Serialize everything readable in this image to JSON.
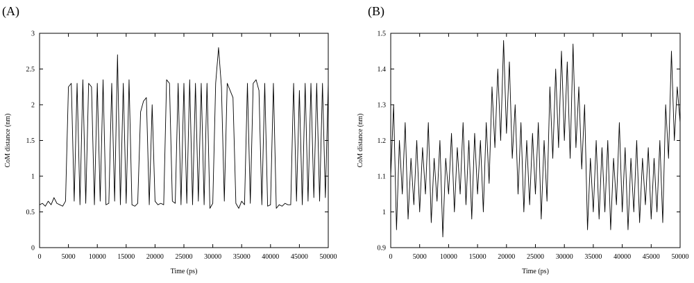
{
  "chart_data": [
    {
      "type": "line",
      "panel_label": "(A)",
      "xlabel": "Time (ps)",
      "ylabel": "CoM distance (nm)",
      "xlim": [
        0,
        50000
      ],
      "ylim": [
        0,
        3
      ],
      "xticks": [
        0,
        5000,
        10000,
        15000,
        20000,
        25000,
        30000,
        35000,
        40000,
        45000,
        50000
      ],
      "yticks": [
        0,
        0.5,
        1,
        1.5,
        2,
        2.5,
        3
      ],
      "x": [
        0,
        500,
        1000,
        1500,
        2000,
        2500,
        3000,
        3500,
        4000,
        4500,
        5000,
        5500,
        6000,
        6500,
        7000,
        7500,
        8000,
        8500,
        9000,
        9500,
        10000,
        10500,
        11000,
        11500,
        12000,
        12500,
        13000,
        13500,
        14000,
        14500,
        15000,
        15500,
        16000,
        16500,
        17000,
        17500,
        18000,
        18500,
        19000,
        19500,
        20000,
        20500,
        21000,
        21500,
        22000,
        22500,
        23000,
        23500,
        24000,
        24500,
        25000,
        25500,
        26000,
        26500,
        27000,
        27500,
        28000,
        28500,
        29000,
        29500,
        30000,
        30500,
        31000,
        31500,
        32000,
        32500,
        33000,
        33500,
        34000,
        34500,
        35000,
        35500,
        36000,
        36500,
        37000,
        37500,
        38000,
        38500,
        39000,
        39500,
        40000,
        40500,
        41000,
        41500,
        42000,
        42500,
        43000,
        43500,
        44000,
        44500,
        45000,
        45500,
        46000,
        46500,
        47000,
        47500,
        48000,
        48500,
        49000,
        49500,
        50000
      ],
      "series": [
        {
          "color": "#000000",
          "values": [
            0.6,
            0.62,
            0.58,
            0.65,
            0.6,
            0.7,
            0.62,
            0.6,
            0.58,
            0.65,
            2.25,
            2.3,
            0.65,
            2.3,
            0.6,
            2.35,
            0.62,
            2.3,
            2.25,
            0.6,
            2.3,
            0.65,
            2.35,
            0.6,
            0.62,
            2.3,
            0.65,
            2.7,
            0.6,
            2.3,
            0.62,
            2.35,
            0.6,
            0.58,
            0.62,
            1.9,
            2.05,
            2.1,
            0.6,
            2.0,
            0.65,
            0.6,
            0.62,
            0.6,
            2.35,
            2.3,
            0.65,
            0.62,
            2.3,
            0.6,
            2.3,
            0.62,
            2.35,
            0.6,
            2.3,
            0.65,
            2.3,
            0.6,
            2.3,
            0.55,
            0.62,
            2.3,
            2.8,
            2.25,
            0.65,
            2.3,
            2.2,
            2.1,
            0.62,
            0.55,
            0.65,
            0.6,
            2.3,
            0.62,
            2.3,
            2.35,
            2.2,
            0.6,
            2.3,
            0.58,
            0.6,
            2.3,
            0.55,
            0.6,
            0.58,
            0.62,
            0.6,
            0.6,
            2.3,
            0.65,
            2.2,
            0.6,
            2.3,
            0.65,
            2.3,
            0.7,
            2.3,
            0.65,
            2.3,
            0.7,
            2.3
          ]
        }
      ]
    },
    {
      "type": "line",
      "panel_label": "(B)",
      "xlabel": "Time (ps)",
      "ylabel": "CoM distance (nm)",
      "xlim": [
        0,
        50000
      ],
      "ylim": [
        0.9,
        1.5
      ],
      "xticks": [
        0,
        5000,
        10000,
        15000,
        20000,
        25000,
        30000,
        35000,
        40000,
        45000,
        50000
      ],
      "yticks": [
        0.9,
        1,
        1.1,
        1.2,
        1.3,
        1.4,
        1.5
      ],
      "x": [
        0,
        500,
        1000,
        1500,
        2000,
        2500,
        3000,
        3500,
        4000,
        4500,
        5000,
        5500,
        6000,
        6500,
        7000,
        7500,
        8000,
        8500,
        9000,
        9500,
        10000,
        10500,
        11000,
        11500,
        12000,
        12500,
        13000,
        13500,
        14000,
        14500,
        15000,
        15500,
        16000,
        16500,
        17000,
        17500,
        18000,
        18500,
        19000,
        19500,
        20000,
        20500,
        21000,
        21500,
        22000,
        22500,
        23000,
        23500,
        24000,
        24500,
        25000,
        25500,
        26000,
        26500,
        27000,
        27500,
        28000,
        28500,
        29000,
        29500,
        30000,
        30500,
        31000,
        31500,
        32000,
        32500,
        33000,
        33500,
        34000,
        34500,
        35000,
        35500,
        36000,
        36500,
        37000,
        37500,
        38000,
        38500,
        39000,
        39500,
        40000,
        40500,
        41000,
        41500,
        42000,
        42500,
        43000,
        43500,
        44000,
        44500,
        45000,
        45500,
        46000,
        46500,
        47000,
        47500,
        48000,
        48500,
        49000,
        49500,
        50000
      ],
      "series": [
        {
          "color": "#000000",
          "values": [
            1.1,
            1.3,
            0.95,
            1.2,
            1.05,
            1.25,
            0.98,
            1.15,
            1.02,
            1.2,
            1.0,
            1.18,
            1.05,
            1.25,
            0.97,
            1.15,
            1.03,
            1.2,
            0.93,
            1.15,
            1.05,
            1.22,
            1.0,
            1.18,
            1.05,
            1.25,
            1.02,
            1.2,
            0.98,
            1.22,
            1.05,
            1.2,
            1.0,
            1.25,
            1.08,
            1.35,
            1.18,
            1.4,
            1.2,
            1.48,
            1.22,
            1.42,
            1.15,
            1.3,
            1.05,
            1.25,
            1.0,
            1.2,
            1.02,
            1.22,
            1.05,
            1.25,
            0.98,
            1.2,
            1.03,
            1.35,
            1.15,
            1.4,
            1.18,
            1.45,
            1.2,
            1.42,
            1.15,
            1.47,
            1.18,
            1.35,
            1.12,
            1.3,
            0.95,
            1.15,
            1.0,
            1.2,
            0.98,
            1.18,
            1.0,
            1.2,
            0.95,
            1.15,
            1.02,
            1.25,
            1.0,
            1.18,
            0.95,
            1.15,
            1.0,
            1.2,
            0.97,
            1.15,
            1.02,
            1.18,
            0.98,
            1.15,
            1.0,
            1.2,
            0.97,
            1.3,
            1.15,
            1.45,
            1.2,
            1.35,
            1.25
          ]
        }
      ]
    }
  ]
}
